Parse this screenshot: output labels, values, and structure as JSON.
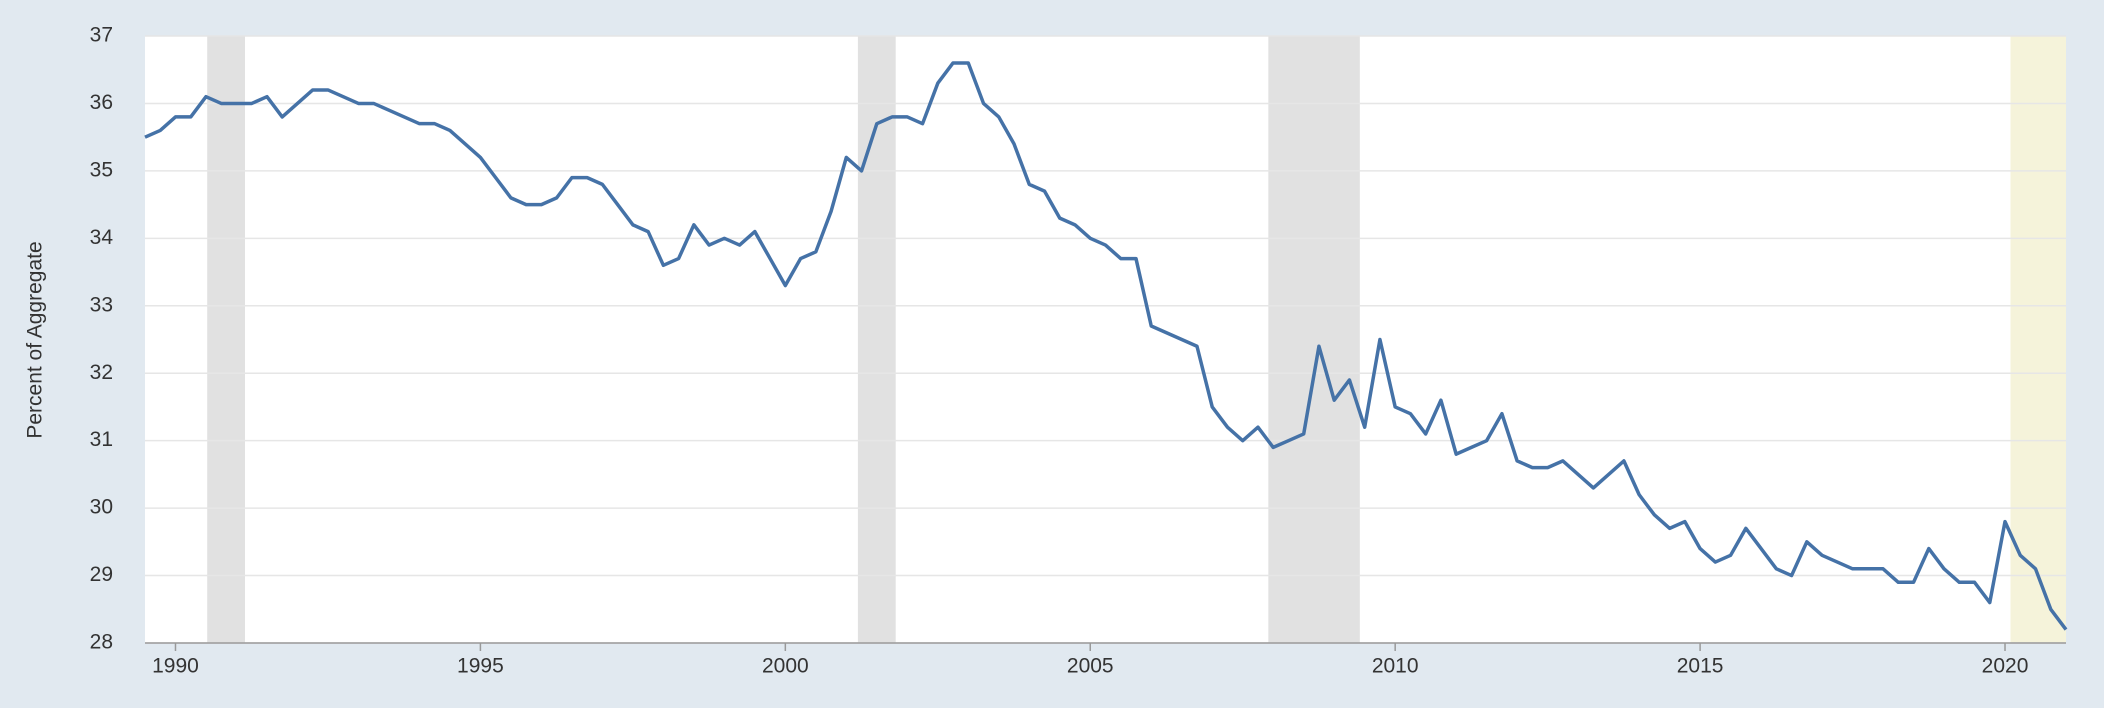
{
  "chart_data": {
    "type": "line",
    "y_label": "Percent of Aggregate",
    "x": [
      1989.5,
      1989.75,
      1990,
      1990.25,
      1990.5,
      1990.75,
      1991,
      1991.25,
      1991.5,
      1991.75,
      1992,
      1992.25,
      1992.5,
      1992.75,
      1993,
      1993.25,
      1993.5,
      1993.75,
      1994,
      1994.25,
      1994.5,
      1994.75,
      1995,
      1995.25,
      1995.5,
      1995.75,
      1996,
      1996.25,
      1996.5,
      1996.75,
      1997,
      1997.25,
      1997.5,
      1997.75,
      1998,
      1998.25,
      1998.5,
      1998.75,
      1999,
      1999.25,
      1999.5,
      1999.75,
      2000,
      2000.25,
      2000.5,
      2000.75,
      2001,
      2001.25,
      2001.5,
      2001.75,
      2002,
      2002.25,
      2002.5,
      2002.75,
      2003,
      2003.25,
      2003.5,
      2003.75,
      2004,
      2004.25,
      2004.5,
      2004.75,
      2005,
      2005.25,
      2005.5,
      2005.75,
      2006,
      2006.25,
      2006.5,
      2006.75,
      2007,
      2007.25,
      2007.5,
      2007.75,
      2008,
      2008.25,
      2008.5,
      2008.75,
      2009,
      2009.25,
      2009.5,
      2009.75,
      2010,
      2010.25,
      2010.5,
      2010.75,
      2011,
      2011.25,
      2011.5,
      2011.75,
      2012,
      2012.25,
      2012.5,
      2012.75,
      2013,
      2013.25,
      2013.5,
      2013.75,
      2014,
      2014.25,
      2014.5,
      2014.75,
      2015,
      2015.25,
      2015.5,
      2015.75,
      2016,
      2016.25,
      2016.5,
      2016.75,
      2017,
      2017.25,
      2017.5,
      2017.75,
      2018,
      2018.25,
      2018.5,
      2018.75,
      2019,
      2019.25,
      2019.5,
      2019.75,
      2020,
      2020.25,
      2020.5,
      2020.75,
      2021
    ],
    "series": [
      {
        "color": "#4572a7",
        "values": [
          35.5,
          35.6,
          35.8,
          35.8,
          36.1,
          36.0,
          36.0,
          36.0,
          36.1,
          35.8,
          36.0,
          36.2,
          36.2,
          36.1,
          36.0,
          36.0,
          35.9,
          35.8,
          35.7,
          35.7,
          35.6,
          35.4,
          35.2,
          34.9,
          34.6,
          34.5,
          34.5,
          34.6,
          34.9,
          34.9,
          34.8,
          34.5,
          34.2,
          34.1,
          33.6,
          33.7,
          34.2,
          33.9,
          34.0,
          33.9,
          34.1,
          33.7,
          33.3,
          33.7,
          33.8,
          34.4,
          35.2,
          35.0,
          35.7,
          35.8,
          35.8,
          35.7,
          36.3,
          36.6,
          36.6,
          36.0,
          35.8,
          35.4,
          34.8,
          34.7,
          34.3,
          34.2,
          34.0,
          33.9,
          33.7,
          33.7,
          32.7,
          32.6,
          32.5,
          32.4,
          31.5,
          31.2,
          31.0,
          31.2,
          30.9,
          31.0,
          31.1,
          32.4,
          31.6,
          31.9,
          31.2,
          32.5,
          31.5,
          31.4,
          31.1,
          31.6,
          30.8,
          30.9,
          31.0,
          31.4,
          30.7,
          30.6,
          30.6,
          30.7,
          30.5,
          30.3,
          30.5,
          30.7,
          30.2,
          29.9,
          29.7,
          29.8,
          29.4,
          29.2,
          29.3,
          29.7,
          29.4,
          29.1,
          29.0,
          29.5,
          29.3,
          29.2,
          29.1,
          29.1,
          29.1,
          28.9,
          28.9,
          29.4,
          29.1,
          28.9,
          28.9,
          28.6,
          29.8,
          29.3,
          29.1,
          28.5,
          28.2
        ]
      }
    ],
    "shaded_periods": [
      {
        "start": 1990.52,
        "end": 1991.14,
        "color": "#e1e1e1"
      },
      {
        "start": 2001.19,
        "end": 2001.81,
        "color": "#e1e1e1"
      },
      {
        "start": 2007.92,
        "end": 2009.42,
        "color": "#e1e1e1"
      },
      {
        "start": 2020.09,
        "end": 2021,
        "color": "#f5f3da"
      }
    ],
    "xlim": [
      1989.5,
      2021
    ],
    "ylim": [
      28,
      37
    ],
    "xticks": [
      1990,
      1995,
      2000,
      2005,
      2010,
      2015,
      2020
    ],
    "yticks": [
      28,
      29,
      30,
      31,
      32,
      33,
      34,
      35,
      36,
      37
    ],
    "grid": true
  }
}
